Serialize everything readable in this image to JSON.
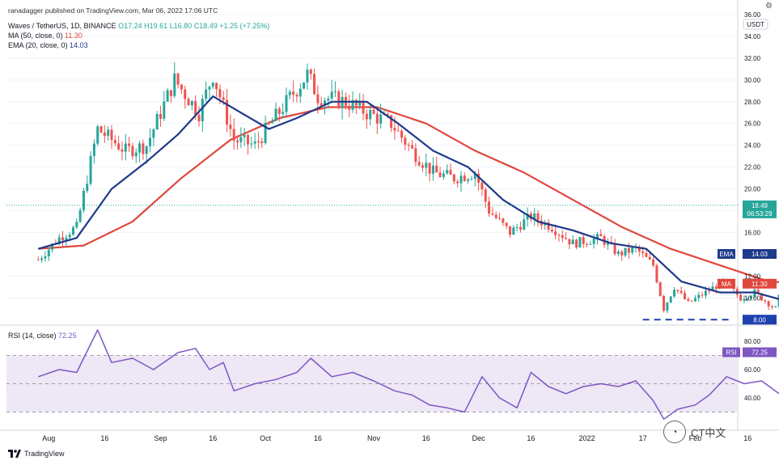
{
  "credit": "ranadagger published on TradingView.com, Mar 06, 2022 17:06 UTC",
  "header": {
    "symbol": "Waves / TetherUS, 1D, BINANCE",
    "o": "O17.24",
    "h": "H19.61",
    "l": "L16.80",
    "c": "C18.49",
    "chg": "+1.25 (+7.25%)",
    "ma_label": "MA (50, close, 0)",
    "ma_val": "11.30",
    "ema_label": "EMA (20, close, 0)",
    "ema_val": "14.03"
  },
  "rsi_title": {
    "label": "RSI (14, close)",
    "val": "72.25"
  },
  "footer": {
    "brand": "TradingView"
  },
  "watermark": {
    "text": "CT中文"
  },
  "colors": {
    "up": "#26a69a",
    "down": "#ef5350",
    "ema": "#1e3a8a",
    "ma": "#e0473d",
    "rsi": "#7e57c2",
    "rsi_band": "#ede7f6",
    "dash": "#1e40af"
  },
  "chart_data": [
    {
      "type": "candlestick",
      "pair": "Waves / TetherUS",
      "timeframe": "1D",
      "exchange": "BINANCE",
      "ylim": [
        7.5,
        36
      ],
      "price_axis_ticks": [
        "10.00",
        "12.00",
        "16.00",
        "18.00",
        "20.00",
        "22.00",
        "24.00",
        "26.00",
        "28.00",
        "30.00",
        "32.00",
        "34.00",
        "36.00"
      ],
      "y_axis_unit": "USDT",
      "time_labels": [
        "Aug",
        "16",
        "Sep",
        "16",
        "Oct",
        "16",
        "Nov",
        "16",
        "Dec",
        "16",
        "2022",
        "17",
        "Feb",
        "16"
      ],
      "close_keypoints": [
        {
          "date": "2021-07-28",
          "close": 13.5
        },
        {
          "date": "2021-08-03",
          "close": 15.5
        },
        {
          "date": "2021-08-08",
          "close": 16.5
        },
        {
          "date": "2021-08-14",
          "close": 25.5
        },
        {
          "date": "2021-08-22",
          "close": 23.5
        },
        {
          "date": "2021-08-28",
          "close": 24.0
        },
        {
          "date": "2021-09-05",
          "close": 30.0
        },
        {
          "date": "2021-09-12",
          "close": 27.0
        },
        {
          "date": "2021-09-16",
          "close": 30.5
        },
        {
          "date": "2021-09-22",
          "close": 24.5
        },
        {
          "date": "2021-09-28",
          "close": 24.0
        },
        {
          "date": "2021-10-06",
          "close": 27.5
        },
        {
          "date": "2021-10-13",
          "close": 30.5
        },
        {
          "date": "2021-10-16",
          "close": 28.5
        },
        {
          "date": "2021-10-24",
          "close": 28.0
        },
        {
          "date": "2021-10-30",
          "close": 27.0
        },
        {
          "date": "2021-11-06",
          "close": 26.0
        },
        {
          "date": "2021-11-12",
          "close": 23.5
        },
        {
          "date": "2021-11-18",
          "close": 21.5
        },
        {
          "date": "2021-11-24",
          "close": 21.0
        },
        {
          "date": "2021-11-30",
          "close": 21.5
        },
        {
          "date": "2021-12-04",
          "close": 18.0
        },
        {
          "date": "2021-12-10",
          "close": 16.0
        },
        {
          "date": "2021-12-16",
          "close": 17.5
        },
        {
          "date": "2021-12-22",
          "close": 16.5
        },
        {
          "date": "2021-12-28",
          "close": 15.0
        },
        {
          "date": "2022-01-05",
          "close": 15.5
        },
        {
          "date": "2022-01-10",
          "close": 14.0
        },
        {
          "date": "2022-01-15",
          "close": 14.5
        },
        {
          "date": "2022-01-20",
          "close": 13.0
        },
        {
          "date": "2022-01-23",
          "close": 9.0
        },
        {
          "date": "2022-01-26",
          "close": 11.0
        },
        {
          "date": "2022-01-30",
          "close": 9.5
        },
        {
          "date": "2022-02-04",
          "close": 10.5
        },
        {
          "date": "2022-02-09",
          "close": 11.5
        },
        {
          "date": "2022-02-14",
          "close": 10.0
        },
        {
          "date": "2022-02-18",
          "close": 10.5
        },
        {
          "date": "2022-02-24",
          "close": 9.0
        },
        {
          "date": "2022-02-27",
          "close": 12.0
        },
        {
          "date": "2022-02-28",
          "close": 13.5
        },
        {
          "date": "2022-03-01",
          "close": 18.0
        },
        {
          "date": "2022-03-02",
          "close": 19.5
        },
        {
          "date": "2022-03-03",
          "close": 18.5
        },
        {
          "date": "2022-03-04",
          "close": 17.2
        },
        {
          "date": "2022-03-05",
          "close": 17.2
        },
        {
          "date": "2022-03-06",
          "close": 18.49
        }
      ],
      "last_bar": {
        "date": "2022-03-06",
        "open": 17.24,
        "high": 19.61,
        "low": 16.8,
        "close": 18.49
      },
      "price_label": {
        "value": "18.49",
        "countdown": "06:53:29"
      },
      "ema20": {
        "label": "EMA",
        "value": "14.03",
        "points": [
          {
            "date": "2021-07-28",
            "value": 14.5
          },
          {
            "date": "2021-08-08",
            "value": 15.5
          },
          {
            "date": "2021-08-18",
            "value": 20.0
          },
          {
            "date": "2021-08-28",
            "value": 22.5
          },
          {
            "date": "2021-09-06",
            "value": 25.0
          },
          {
            "date": "2021-09-16",
            "value": 28.5
          },
          {
            "date": "2021-09-24",
            "value": 27.0
          },
          {
            "date": "2021-10-02",
            "value": 25.5
          },
          {
            "date": "2021-10-10",
            "value": 26.5
          },
          {
            "date": "2021-10-20",
            "value": 28.0
          },
          {
            "date": "2021-10-30",
            "value": 28.0
          },
          {
            "date": "2021-11-08",
            "value": 26.0
          },
          {
            "date": "2021-11-18",
            "value": 23.5
          },
          {
            "date": "2021-11-28",
            "value": 22.0
          },
          {
            "date": "2021-12-08",
            "value": 19.0
          },
          {
            "date": "2021-12-18",
            "value": 17.0
          },
          {
            "date": "2021-12-28",
            "value": 16.2
          },
          {
            "date": "2022-01-08",
            "value": 15.0
          },
          {
            "date": "2022-01-18",
            "value": 14.5
          },
          {
            "date": "2022-01-28",
            "value": 11.5
          },
          {
            "date": "2022-02-08",
            "value": 10.5
          },
          {
            "date": "2022-02-18",
            "value": 10.5
          },
          {
            "date": "2022-02-26",
            "value": 9.8
          },
          {
            "date": "2022-03-01",
            "value": 11.5
          },
          {
            "date": "2022-03-06",
            "value": 14.03
          }
        ]
      },
      "ma50": {
        "label": "MA",
        "value": "11.30",
        "points": [
          {
            "date": "2021-07-28",
            "value": 14.5
          },
          {
            "date": "2021-08-10",
            "value": 14.8
          },
          {
            "date": "2021-08-24",
            "value": 17.0
          },
          {
            "date": "2021-09-07",
            "value": 21.0
          },
          {
            "date": "2021-09-21",
            "value": 24.5
          },
          {
            "date": "2021-10-05",
            "value": 26.5
          },
          {
            "date": "2021-10-19",
            "value": 27.5
          },
          {
            "date": "2021-11-02",
            "value": 27.5
          },
          {
            "date": "2021-11-16",
            "value": 26.0
          },
          {
            "date": "2021-11-30",
            "value": 23.5
          },
          {
            "date": "2021-12-14",
            "value": 21.5
          },
          {
            "date": "2021-12-28",
            "value": 19.0
          },
          {
            "date": "2022-01-11",
            "value": 16.5
          },
          {
            "date": "2022-01-25",
            "value": 14.5
          },
          {
            "date": "2022-02-08",
            "value": 13.0
          },
          {
            "date": "2022-02-22",
            "value": 11.5
          },
          {
            "date": "2022-03-06",
            "value": 11.3
          }
        ]
      },
      "support_level": {
        "value": "8.00",
        "style": "dashed"
      }
    },
    {
      "type": "line",
      "name": "RSI (14, close)",
      "value": "72.25",
      "ylim": [
        20,
        100
      ],
      "ticks": [
        "40.00",
        "60.00",
        "80.00"
      ],
      "bands": {
        "upper": 70,
        "middle": 50,
        "lower": 30
      },
      "points": [
        {
          "date": "2021-07-28",
          "value": 55
        },
        {
          "date": "2021-08-03",
          "value": 60
        },
        {
          "date": "2021-08-08",
          "value": 58
        },
        {
          "date": "2021-08-14",
          "value": 88
        },
        {
          "date": "2021-08-18",
          "value": 65
        },
        {
          "date": "2021-08-24",
          "value": 68
        },
        {
          "date": "2021-08-30",
          "value": 60
        },
        {
          "date": "2021-09-06",
          "value": 72
        },
        {
          "date": "2021-09-11",
          "value": 75
        },
        {
          "date": "2021-09-15",
          "value": 60
        },
        {
          "date": "2021-09-19",
          "value": 65
        },
        {
          "date": "2021-09-22",
          "value": 45
        },
        {
          "date": "2021-09-28",
          "value": 50
        },
        {
          "date": "2021-10-04",
          "value": 53
        },
        {
          "date": "2021-10-10",
          "value": 58
        },
        {
          "date": "2021-10-14",
          "value": 68
        },
        {
          "date": "2021-10-20",
          "value": 55
        },
        {
          "date": "2021-10-26",
          "value": 58
        },
        {
          "date": "2021-11-01",
          "value": 52
        },
        {
          "date": "2021-11-07",
          "value": 45
        },
        {
          "date": "2021-11-12",
          "value": 42
        },
        {
          "date": "2021-11-17",
          "value": 35
        },
        {
          "date": "2021-11-22",
          "value": 33
        },
        {
          "date": "2021-11-27",
          "value": 30
        },
        {
          "date": "2021-12-02",
          "value": 55
        },
        {
          "date": "2021-12-07",
          "value": 40
        },
        {
          "date": "2021-12-12",
          "value": 33
        },
        {
          "date": "2021-12-16",
          "value": 58
        },
        {
          "date": "2021-12-21",
          "value": 48
        },
        {
          "date": "2021-12-26",
          "value": 43
        },
        {
          "date": "2021-12-31",
          "value": 48
        },
        {
          "date": "2022-01-05",
          "value": 50
        },
        {
          "date": "2022-01-10",
          "value": 48
        },
        {
          "date": "2022-01-15",
          "value": 52
        },
        {
          "date": "2022-01-20",
          "value": 38
        },
        {
          "date": "2022-01-23",
          "value": 25
        },
        {
          "date": "2022-01-27",
          "value": 32
        },
        {
          "date": "2022-02-01",
          "value": 35
        },
        {
          "date": "2022-02-05",
          "value": 42
        },
        {
          "date": "2022-02-10",
          "value": 55
        },
        {
          "date": "2022-02-15",
          "value": 50
        },
        {
          "date": "2022-02-20",
          "value": 52
        },
        {
          "date": "2022-02-25",
          "value": 43
        },
        {
          "date": "2022-02-28",
          "value": 62
        },
        {
          "date": "2022-03-01",
          "value": 75
        },
        {
          "date": "2022-03-03",
          "value": 77
        },
        {
          "date": "2022-03-05",
          "value": 67
        },
        {
          "date": "2022-03-06",
          "value": 72.25
        }
      ]
    }
  ]
}
